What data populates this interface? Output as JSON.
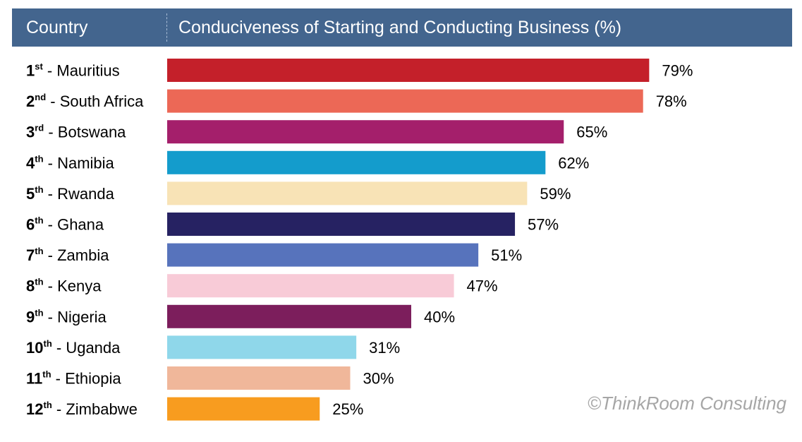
{
  "header": {
    "country_label": "Country",
    "metric_label": "Conduciveness of Starting and Conducting Business (%)",
    "background_color": "#43658e"
  },
  "watermark": "©ThinkRoom Consulting",
  "chart_data": {
    "type": "bar",
    "orientation": "horizontal",
    "title": "Conduciveness of Starting and Conducting Business (%)",
    "xlim": [
      0,
      100
    ],
    "grid": false,
    "legend": "none",
    "rows": [
      {
        "rank": "1",
        "suffix": "st",
        "country": "Mauritius",
        "value": 79,
        "label": "79%",
        "color": "#c4202a"
      },
      {
        "rank": "2",
        "suffix": "nd",
        "country": "South Africa",
        "value": 78,
        "label": "78%",
        "color": "#ec6856"
      },
      {
        "rank": "3",
        "suffix": "rd",
        "country": "Botswana",
        "value": 65,
        "label": "65%",
        "color": "#a41f6b"
      },
      {
        "rank": "4",
        "suffix": "th",
        "country": "Namibia",
        "value": 62,
        "label": "62%",
        "color": "#149ccc"
      },
      {
        "rank": "5",
        "suffix": "th",
        "country": "Rwanda",
        "value": 59,
        "label": "59%",
        "color": "#f8e3b6"
      },
      {
        "rank": "6",
        "suffix": "th",
        "country": "Ghana",
        "value": 57,
        "label": "57%",
        "color": "#262262"
      },
      {
        "rank": "7",
        "suffix": "th",
        "country": "Zambia",
        "value": 51,
        "label": "51%",
        "color": "#5773bc"
      },
      {
        "rank": "8",
        "suffix": "th",
        "country": "Kenya",
        "value": 47,
        "label": "47%",
        "color": "#f8cbd7"
      },
      {
        "rank": "9",
        "suffix": "th",
        "country": "Nigeria",
        "value": 40,
        "label": "40%",
        "color": "#7c1e5c"
      },
      {
        "rank": "10",
        "suffix": "th",
        "country": "Uganda",
        "value": 31,
        "label": "31%",
        "color": "#8fd7ea"
      },
      {
        "rank": "11",
        "suffix": "th",
        "country": "Ethiopia",
        "value": 30,
        "label": "30%",
        "color": "#f0b79a"
      },
      {
        "rank": "12",
        "suffix": "th",
        "country": "Zimbabwe",
        "value": 25,
        "label": "25%",
        "color": "#f89c1f"
      }
    ]
  }
}
